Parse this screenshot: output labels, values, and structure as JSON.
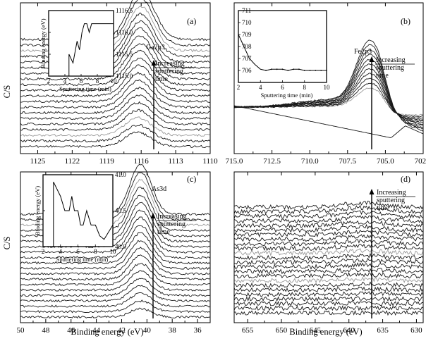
{
  "figure": {
    "ylabel": "C/S",
    "xlabel": "Binding energy (eV)"
  },
  "chart_data": [
    {
      "type": "line",
      "panel_label": "(a)",
      "species": "Ga2p3",
      "xlim": [
        1126.5,
        1110
      ],
      "x_ticks": [
        1125,
        1122,
        1119,
        1116,
        1113,
        1110
      ],
      "ylabel": "C/S",
      "xlabel": "",
      "peak_center": 1116,
      "num_spectra": 20,
      "annotation": [
        "Increasing",
        "sputtering",
        "time"
      ],
      "inset": {
        "xlabel": "Sputtering time (min)",
        "ylabel": "Binding energy (eV)",
        "xlim": [
          2,
          10
        ],
        "ylim": [
          1115.0,
          1116.5
        ],
        "x_ticks": [
          2,
          4,
          6,
          8,
          10
        ],
        "y_ticks": [
          1115.0,
          1115.5,
          1116.0,
          1116.5
        ],
        "x": [
          4.5,
          4.5,
          5.0,
          5.5,
          5.8,
          6.1,
          6.4,
          6.7,
          7.0,
          7.3,
          7.6,
          8,
          8.5,
          9,
          9.5,
          10
        ],
        "y": [
          1115.0,
          1115.5,
          1115.3,
          1115.8,
          1115.6,
          1116.0,
          1116.2,
          1116.2,
          1116.0,
          1116.2,
          1116.2,
          1116.2,
          1116.2,
          1116.2,
          1116.2,
          1116.2
        ]
      }
    },
    {
      "type": "line",
      "panel_label": "(b)",
      "species": "Fe2p3",
      "xlim": [
        715,
        702.5
      ],
      "x_ticks": [
        715.0,
        712.5,
        710.0,
        707.5,
        705.0,
        702.5
      ],
      "xlabel": "",
      "peak_center": 706.0,
      "num_spectra": 12,
      "annotation": [
        "Increasing",
        "sputtering",
        "time"
      ],
      "inset": {
        "xlabel": "Sputtering time (min)",
        "ylabel": "",
        "xlim": [
          2,
          10
        ],
        "ylim": [
          705,
          711
        ],
        "x_ticks": [
          2,
          4,
          6,
          8,
          10
        ],
        "y_ticks": [
          706,
          707,
          708,
          709,
          710,
          711
        ],
        "x": [
          2,
          3,
          3.5,
          4,
          4.5,
          5,
          5.5,
          6,
          6.5,
          7,
          7.5,
          8,
          8.5,
          9,
          9.5,
          10
        ],
        "y": [
          709.0,
          707.0,
          706.5,
          706.1,
          706.0,
          706.1,
          706.1,
          706.1,
          706.0,
          706.1,
          706.1,
          706.0,
          706.0,
          706.0,
          706.0,
          706.0
        ]
      }
    },
    {
      "type": "line",
      "panel_label": "(c)",
      "species": "As3d",
      "xlim": [
        50,
        35
      ],
      "x_ticks": [
        50,
        48,
        46,
        44,
        42,
        40,
        38,
        36
      ],
      "ylabel": "C/S",
      "xlabel": "Binding energy (eV)",
      "peak_center": 40.5,
      "num_spectra": 20,
      "annotation": [
        "Increasing",
        "sputtering",
        "time"
      ],
      "inset": {
        "xlabel": "Sputtering time (min)",
        "ylabel": "Binding energy (eV)",
        "xlim": [
          2,
          10
        ],
        "ylim": [
          40.0,
          41.0
        ],
        "x_ticks": [
          2,
          4,
          6,
          8,
          10
        ],
        "y_ticks": [
          40.0,
          40.5,
          41.0
        ],
        "x": [
          3.2,
          3.2,
          4,
          4.5,
          5,
          5.3,
          5.6,
          6,
          6.3,
          6.6,
          7,
          7.5,
          8,
          8.5,
          9,
          10
        ],
        "y": [
          40.0,
          40.9,
          40.7,
          40.5,
          40.5,
          40.7,
          40.5,
          40.5,
          40.3,
          40.3,
          40.5,
          40.3,
          40.3,
          40.15,
          40.1,
          40.3
        ]
      }
    },
    {
      "type": "line",
      "panel_label": "(d)",
      "species": "Mn2p3",
      "xlim": [
        657,
        629
      ],
      "x_ticks": [
        655,
        650,
        645,
        640,
        635,
        630
      ],
      "xlabel": "Binding energy (eV)",
      "num_spectra": 24,
      "annotation": [
        "Increasing",
        "sputtering",
        "time"
      ]
    }
  ]
}
